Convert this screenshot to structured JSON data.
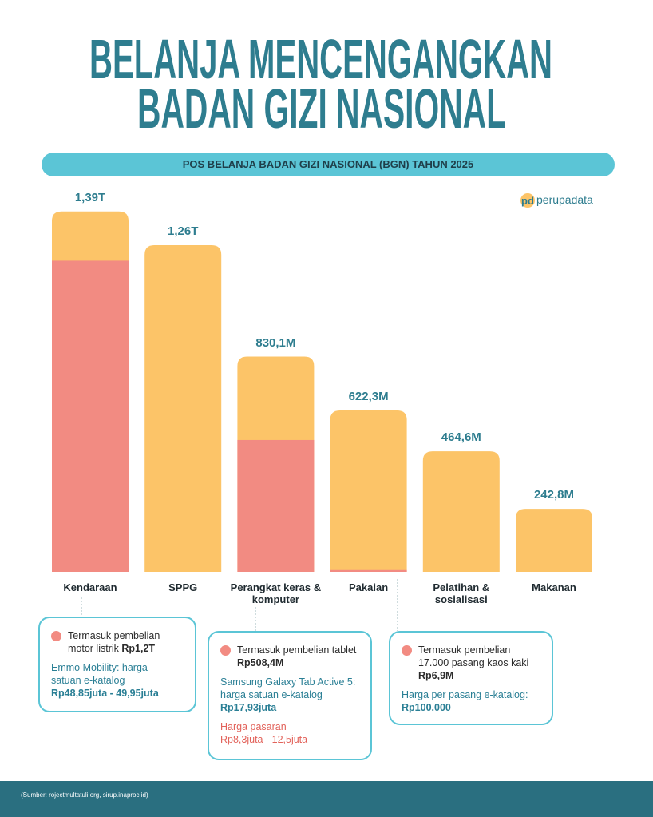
{
  "title_lines": [
    "BELANJA MENCENGANGKAN",
    "BADAN GIZI NASIONAL"
  ],
  "subtitle": "POS BELANJA BADAN GIZI NASIONAL (BGN) TAHUN 2025",
  "logo": {
    "mark": "pd",
    "text": "perupadata"
  },
  "chart_data": {
    "type": "bar",
    "categories": [
      "Kendaraan",
      "SPPG",
      "Perangkat keras & komputer",
      "Pakaian",
      "Pelatihan & sosialisasi",
      "Makanan"
    ],
    "series": [
      {
        "color": "#fcc468",
        "values": [
          1390,
          1260,
          830.1,
          622.3,
          464.6,
          242.8
        ],
        "value_labels": [
          "1,39T",
          "1,26T",
          "830,1M",
          "622,3M",
          "464,6M",
          "242,8M"
        ]
      },
      {
        "color": "#f28b82",
        "values": [
          1200,
          null,
          508.4,
          6.9,
          null,
          null
        ]
      }
    ],
    "ylim": [
      0,
      1400
    ]
  },
  "notes": [
    {
      "intro": "Termasuk pembelian motor listrik",
      "amount": "Rp1,2T",
      "catalog_label": "Emmo Mobility: harga satuan e-katalog",
      "catalog_price": "Rp48,85juta - 49,95juta"
    },
    {
      "intro": "Termasuk pembelian tablet",
      "amount": "Rp508,4M",
      "catalog_label": "Samsung Galaxy Tab Active 5: harga satuan e-katalog",
      "catalog_price": "Rp17,93juta",
      "market_label": "Harga pasaran",
      "market_price": "Rp8,3juta - 12,5juta"
    },
    {
      "intro": "Termasuk pembelian 17.000 pasang kaos kaki",
      "amount": "Rp6,9M",
      "catalog_label": "Harga per pasang e-katalog:",
      "catalog_price": "Rp100.000"
    }
  ],
  "source": "(Sumber: rojectmultatuli.org, sirup.inaproc.id)"
}
